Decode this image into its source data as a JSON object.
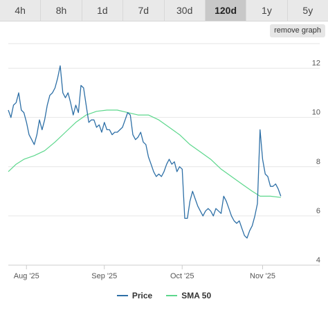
{
  "tabs": [
    {
      "label": "4h",
      "active": false
    },
    {
      "label": "8h",
      "active": false
    },
    {
      "label": "1d",
      "active": false
    },
    {
      "label": "7d",
      "active": false
    },
    {
      "label": "30d",
      "active": false
    },
    {
      "label": "120d",
      "active": true
    },
    {
      "label": "1y",
      "active": false
    },
    {
      "label": "5y",
      "active": false
    }
  ],
  "remove_graph_label": "remove graph",
  "colors": {
    "price": "#2d6fa6",
    "sma": "#5cd78c",
    "grid": "#e6e6e6",
    "axis": "#cccccc"
  },
  "chart_data": {
    "type": "line",
    "ylim": [
      4,
      13
    ],
    "y_ticks": [
      4,
      6,
      8,
      10,
      12
    ],
    "x_ticks": [
      {
        "day": 7,
        "label": "Aug '25"
      },
      {
        "day": 37,
        "label": "Sep '25"
      },
      {
        "day": 67,
        "label": "Oct '25"
      },
      {
        "day": 98,
        "label": "Nov '25"
      }
    ],
    "xlim": [
      0,
      120
    ],
    "legend_position": "bottom-center",
    "series": [
      {
        "name": "Price",
        "key": "price",
        "points": [
          [
            0,
            10.3
          ],
          [
            1,
            10.0
          ],
          [
            2,
            10.5
          ],
          [
            3,
            10.6
          ],
          [
            4,
            11.0
          ],
          [
            5,
            10.3
          ],
          [
            6,
            10.2
          ],
          [
            7,
            9.8
          ],
          [
            8,
            9.3
          ],
          [
            9,
            9.1
          ],
          [
            10,
            8.9
          ],
          [
            11,
            9.3
          ],
          [
            12,
            9.9
          ],
          [
            13,
            9.5
          ],
          [
            14,
            9.9
          ],
          [
            15,
            10.5
          ],
          [
            16,
            10.9
          ],
          [
            17,
            11.0
          ],
          [
            18,
            11.2
          ],
          [
            19,
            11.6
          ],
          [
            20,
            12.1
          ],
          [
            21,
            11.0
          ],
          [
            22,
            10.8
          ],
          [
            23,
            11.0
          ],
          [
            24,
            10.6
          ],
          [
            25,
            10.1
          ],
          [
            26,
            10.5
          ],
          [
            27,
            10.2
          ],
          [
            28,
            11.3
          ],
          [
            29,
            11.2
          ],
          [
            30,
            10.5
          ],
          [
            31,
            9.8
          ],
          [
            32,
            9.9
          ],
          [
            33,
            9.9
          ],
          [
            34,
            9.6
          ],
          [
            35,
            9.7
          ],
          [
            36,
            9.4
          ],
          [
            37,
            9.8
          ],
          [
            38,
            9.5
          ],
          [
            39,
            9.5
          ],
          [
            40,
            9.3
          ],
          [
            41,
            9.4
          ],
          [
            42,
            9.4
          ],
          [
            43,
            9.5
          ],
          [
            44,
            9.6
          ],
          [
            45,
            9.9
          ],
          [
            46,
            10.2
          ],
          [
            47,
            10.1
          ],
          [
            48,
            9.3
          ],
          [
            49,
            9.1
          ],
          [
            50,
            9.2
          ],
          [
            51,
            9.4
          ],
          [
            52,
            9.0
          ],
          [
            53,
            8.9
          ],
          [
            54,
            8.4
          ],
          [
            55,
            8.1
          ],
          [
            56,
            7.8
          ],
          [
            57,
            7.6
          ],
          [
            58,
            7.7
          ],
          [
            59,
            7.6
          ],
          [
            60,
            7.8
          ],
          [
            61,
            8.1
          ],
          [
            62,
            8.3
          ],
          [
            63,
            8.1
          ],
          [
            64,
            8.2
          ],
          [
            65,
            7.8
          ],
          [
            66,
            8.0
          ],
          [
            67,
            7.9
          ],
          [
            68,
            5.9
          ],
          [
            69,
            5.9
          ],
          [
            70,
            6.6
          ],
          [
            71,
            7.0
          ],
          [
            72,
            6.7
          ],
          [
            73,
            6.4
          ],
          [
            74,
            6.2
          ],
          [
            75,
            6.0
          ],
          [
            76,
            6.2
          ],
          [
            77,
            6.3
          ],
          [
            78,
            6.2
          ],
          [
            79,
            6.0
          ],
          [
            80,
            6.3
          ],
          [
            81,
            6.2
          ],
          [
            82,
            6.1
          ],
          [
            83,
            6.8
          ],
          [
            84,
            6.6
          ],
          [
            85,
            6.3
          ],
          [
            86,
            6.0
          ],
          [
            87,
            5.8
          ],
          [
            88,
            5.7
          ],
          [
            89,
            5.8
          ],
          [
            90,
            5.5
          ],
          [
            91,
            5.2
          ],
          [
            92,
            5.1
          ],
          [
            93,
            5.4
          ],
          [
            94,
            5.6
          ],
          [
            95,
            6.0
          ],
          [
            96,
            6.5
          ],
          [
            97,
            9.5
          ],
          [
            98,
            8.3
          ],
          [
            99,
            7.7
          ],
          [
            100,
            7.6
          ],
          [
            101,
            7.2
          ],
          [
            102,
            7.2
          ],
          [
            103,
            7.3
          ],
          [
            104,
            7.1
          ],
          [
            105,
            6.8
          ]
        ]
      },
      {
        "name": "SMA 50",
        "key": "sma",
        "points": [
          [
            0,
            7.8
          ],
          [
            3,
            8.1
          ],
          [
            6,
            8.3
          ],
          [
            10,
            8.45
          ],
          [
            14,
            8.65
          ],
          [
            18,
            9.0
          ],
          [
            22,
            9.4
          ],
          [
            26,
            9.8
          ],
          [
            30,
            10.1
          ],
          [
            34,
            10.25
          ],
          [
            38,
            10.3
          ],
          [
            42,
            10.3
          ],
          [
            46,
            10.2
          ],
          [
            50,
            10.1
          ],
          [
            54,
            10.1
          ],
          [
            58,
            9.9
          ],
          [
            62,
            9.6
          ],
          [
            66,
            9.3
          ],
          [
            70,
            8.9
          ],
          [
            74,
            8.6
          ],
          [
            78,
            8.3
          ],
          [
            82,
            7.9
          ],
          [
            86,
            7.6
          ],
          [
            90,
            7.3
          ],
          [
            94,
            7.0
          ],
          [
            97,
            6.8
          ],
          [
            101,
            6.8
          ],
          [
            105,
            6.75
          ]
        ]
      }
    ]
  }
}
